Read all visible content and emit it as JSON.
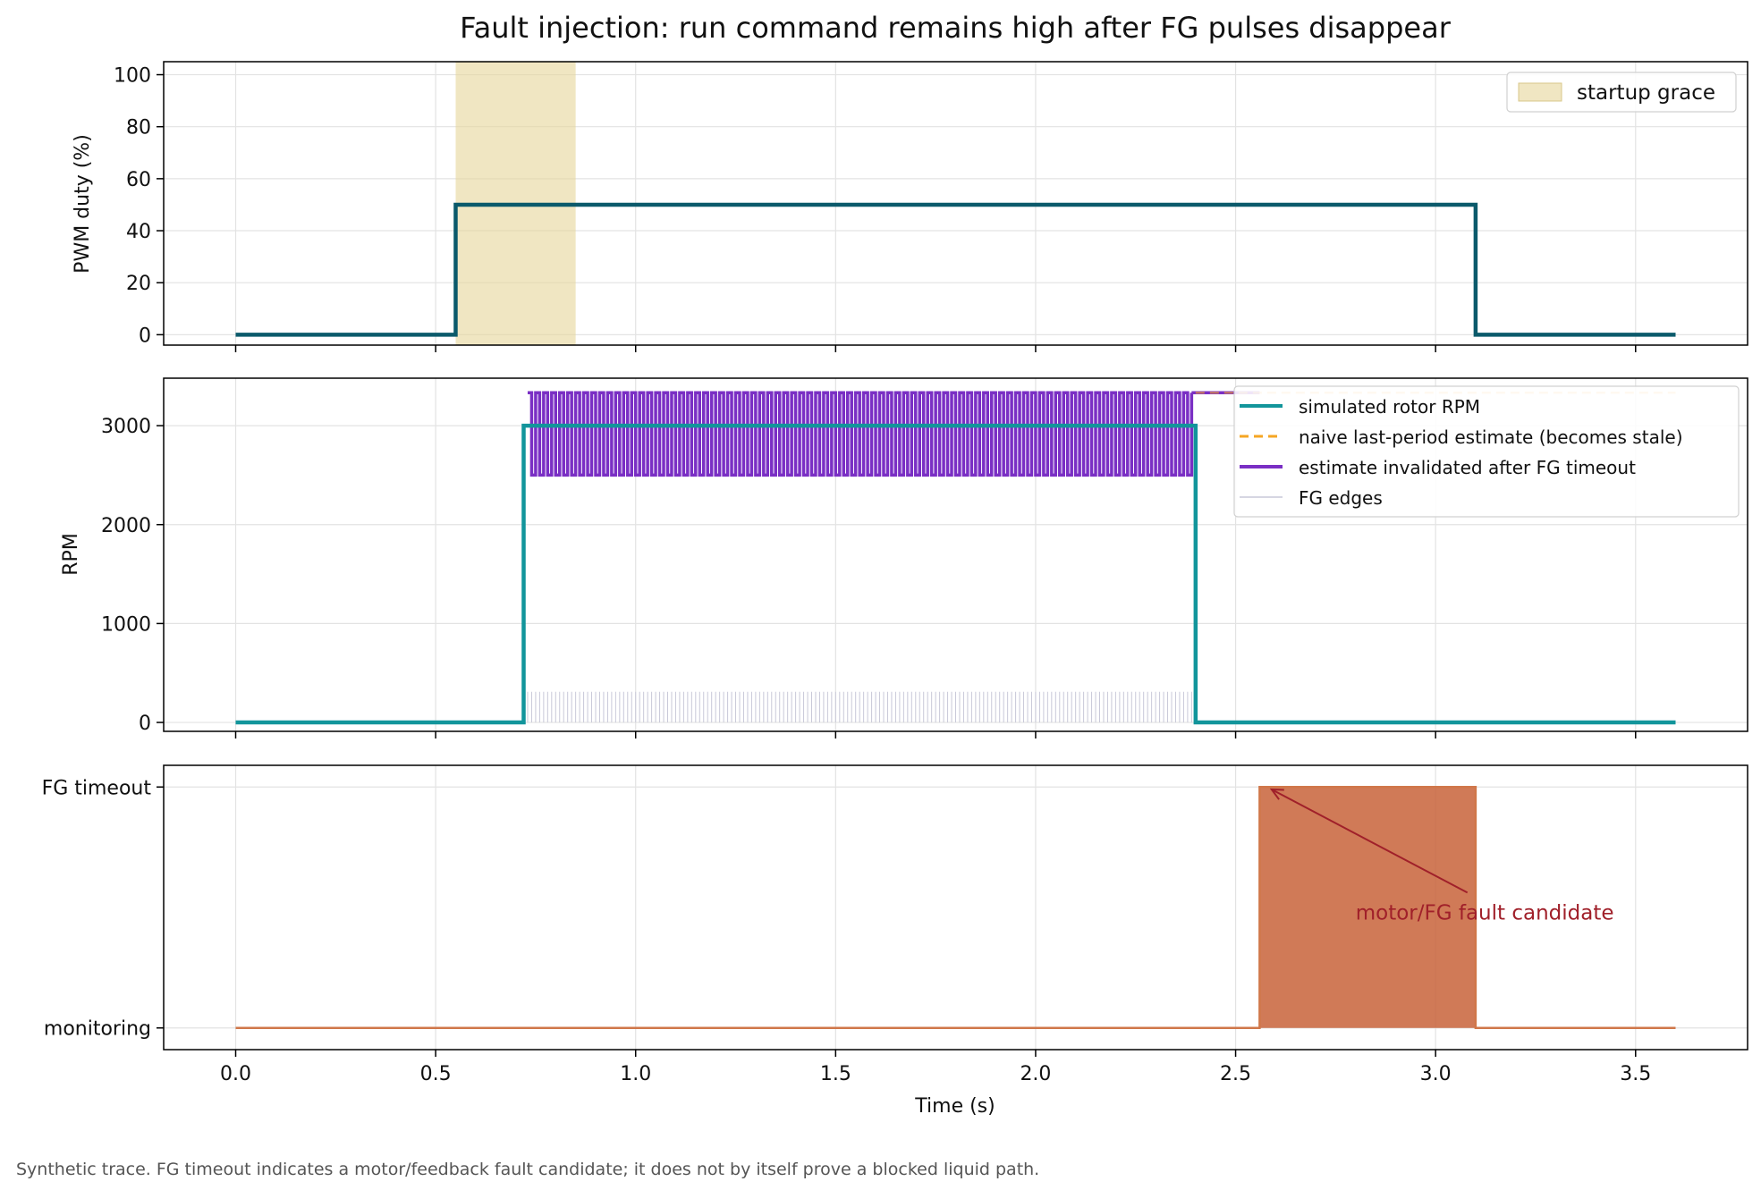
{
  "title": "Fault injection: run command remains high after FG pulses disappear",
  "footnote": "Synthetic trace. FG timeout indicates a motor/feedback fault candidate; it does not by itself prove a blocked liquid path.",
  "colors": {
    "pwm": "#0b5a6b",
    "rpm": "#12959b",
    "naive": "#f5a623",
    "invalidated": "#7a2fc4",
    "fg_edges": "#c8c8d8",
    "grace": "#e6d59a",
    "fault_line": "#d0774a",
    "fault_fill": "#c8633a",
    "annotation": "#a0202a"
  },
  "chart_data": [
    {
      "type": "line",
      "panel": "pwm",
      "ylabel": "PWM duty (%)",
      "xlim": [
        -0.18,
        3.78
      ],
      "ylim": [
        -4,
        105
      ],
      "yticks": [
        0,
        20,
        40,
        60,
        80,
        100
      ],
      "grid": true,
      "legend": "top-right",
      "spans": [
        {
          "name": "startup grace",
          "x0": 0.55,
          "x1": 0.85
        }
      ],
      "series": [
        {
          "name": "",
          "x": [
            0.0,
            0.55,
            0.55,
            3.1,
            3.1,
            3.6
          ],
          "y": [
            0,
            0,
            50,
            50,
            0,
            0
          ]
        }
      ]
    },
    {
      "type": "line",
      "panel": "rpm",
      "ylabel": "RPM",
      "xlim": [
        -0.18,
        3.78
      ],
      "ylim": [
        -90,
        3480
      ],
      "yticks": [
        0,
        1000,
        2000,
        3000
      ],
      "grid": true,
      "legend": "top-right",
      "series": [
        {
          "name": "simulated rotor RPM",
          "x": [
            0.0,
            0.72,
            0.72,
            2.4,
            2.4,
            3.6
          ],
          "y": [
            0,
            0,
            3000,
            3000,
            0,
            0
          ]
        },
        {
          "name": "naive last-period estimate (becomes stale)",
          "x": [
            2.4,
            3.6
          ],
          "y": [
            3333,
            3333
          ]
        },
        {
          "name": "estimate invalidated after FG timeout",
          "x_start": 0.73,
          "x_end": 2.39,
          "y_high": 3333,
          "y_low": 2500,
          "pulse_period": 0.02,
          "stale_until": 2.56
        },
        {
          "name": "FG edges",
          "x_start": 0.73,
          "x_end": 2.39,
          "edge_period": 0.01,
          "y": 310
        }
      ]
    },
    {
      "type": "area",
      "panel": "fault",
      "xlabel": "Time (s)",
      "xlim": [
        -0.18,
        3.78
      ],
      "ylim": [
        -0.09,
        1.09
      ],
      "xticks": [
        0.0,
        0.5,
        1.0,
        1.5,
        2.0,
        2.5,
        3.0,
        3.5
      ],
      "yticklabels": [
        {
          "value": 0,
          "label": "monitoring"
        },
        {
          "value": 1,
          "label": "FG timeout"
        }
      ],
      "grid": true,
      "series": [
        {
          "name": "",
          "x": [
            0.0,
            2.56,
            2.56,
            3.1,
            3.1,
            3.6
          ],
          "y": [
            0,
            0,
            1,
            1,
            0,
            0
          ]
        }
      ],
      "annotation": {
        "text": "motor/FG fault candidate",
        "x": 2.8,
        "y": 0.48,
        "arrow_to_x": 2.59,
        "arrow_to_y": 0.99
      }
    }
  ]
}
